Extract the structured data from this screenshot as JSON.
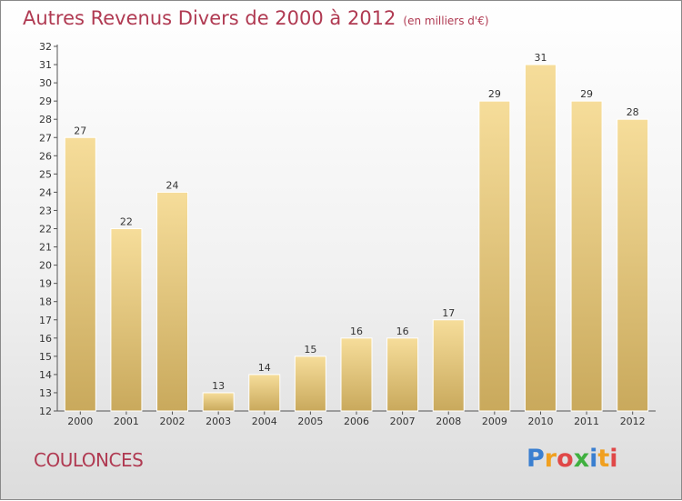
{
  "header": {
    "title": "Autres Revenus Divers de 2000 à 2012",
    "unit": "(en milliers d'€)"
  },
  "location": "COULONCES",
  "logo": {
    "letters": [
      "P",
      "r",
      "o",
      "x",
      "i",
      "t",
      "i"
    ],
    "colors": [
      "#3a7fd0",
      "#f0a020",
      "#e04848",
      "#40b040",
      "#3a7fd0",
      "#f0a020",
      "#e04848"
    ]
  },
  "colors": {
    "bar_top": "#f6dd9a",
    "bar_bottom": "#c9a95c",
    "title": "#b03a52",
    "axis": "#555555"
  },
  "chart_data": {
    "type": "bar",
    "title": "Autres Revenus Divers de 2000 à 2012",
    "categories": [
      "2000",
      "2001",
      "2002",
      "2003",
      "2004",
      "2005",
      "2006",
      "2007",
      "2008",
      "2009",
      "2010",
      "2011",
      "2012"
    ],
    "values": [
      27,
      22,
      24,
      13,
      14,
      15,
      16,
      16,
      17,
      29,
      31,
      29,
      28
    ],
    "ylim": [
      12,
      32
    ],
    "yticks": [
      12,
      13,
      14,
      15,
      16,
      17,
      18,
      19,
      20,
      21,
      22,
      23,
      24,
      25,
      26,
      27,
      28,
      29,
      30,
      31,
      32
    ],
    "grid": false,
    "data_labels": true
  }
}
